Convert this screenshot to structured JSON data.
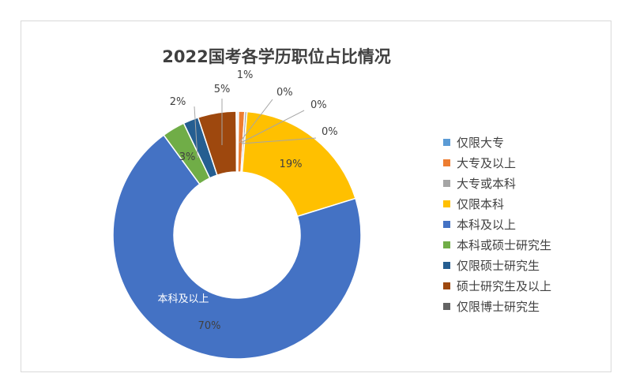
{
  "chart_data": {
    "type": "pie",
    "variant": "doughnut",
    "title": "2022国考各学历职位占比情况",
    "categories": [
      "仅限大专",
      "大专及以上",
      "大专或本科",
      "仅限本科",
      "本科及以上",
      "本科或硕士研究生",
      "仅限硕士研究生",
      "硕士研究生及以上",
      "仅限博士研究生"
    ],
    "values": [
      0.2,
      0.8,
      0.3,
      19,
      70,
      3,
      2,
      5,
      0.1
    ],
    "data_labels": [
      "0%",
      "1%",
      "0%",
      "19%",
      "70%",
      "3%",
      "2%",
      "5%",
      "0%"
    ],
    "colors": [
      "#5B9BD5",
      "#ED7D31",
      "#A5A5A5",
      "#FFC000",
      "#4472C4",
      "#70AD47",
      "#255E91",
      "#9E480E",
      "#636363"
    ],
    "legend_position": "right",
    "annotation": "本科及以上"
  }
}
